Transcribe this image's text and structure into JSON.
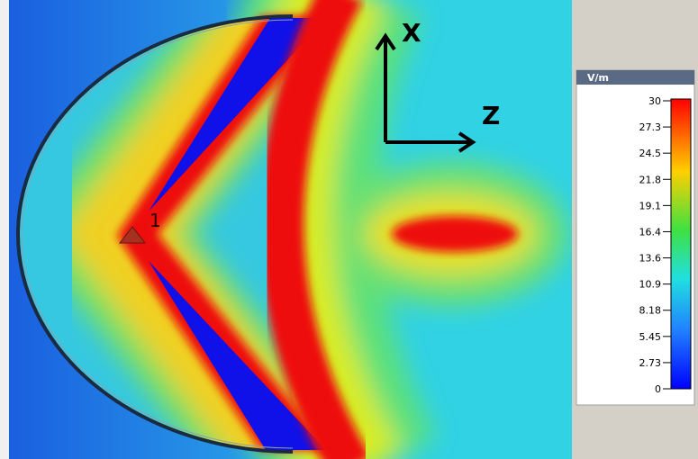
{
  "field_plot": {
    "axis_labels": [
      "X",
      "Z"
    ],
    "port_label": "1"
  },
  "legend": {
    "unit": "V/m",
    "ticks": [
      "30",
      "27.3",
      "24.5",
      "21.8",
      "19.1",
      "16.4",
      "13.6",
      "10.9",
      "8.18",
      "5.45",
      "2.73",
      "0"
    ]
  }
}
